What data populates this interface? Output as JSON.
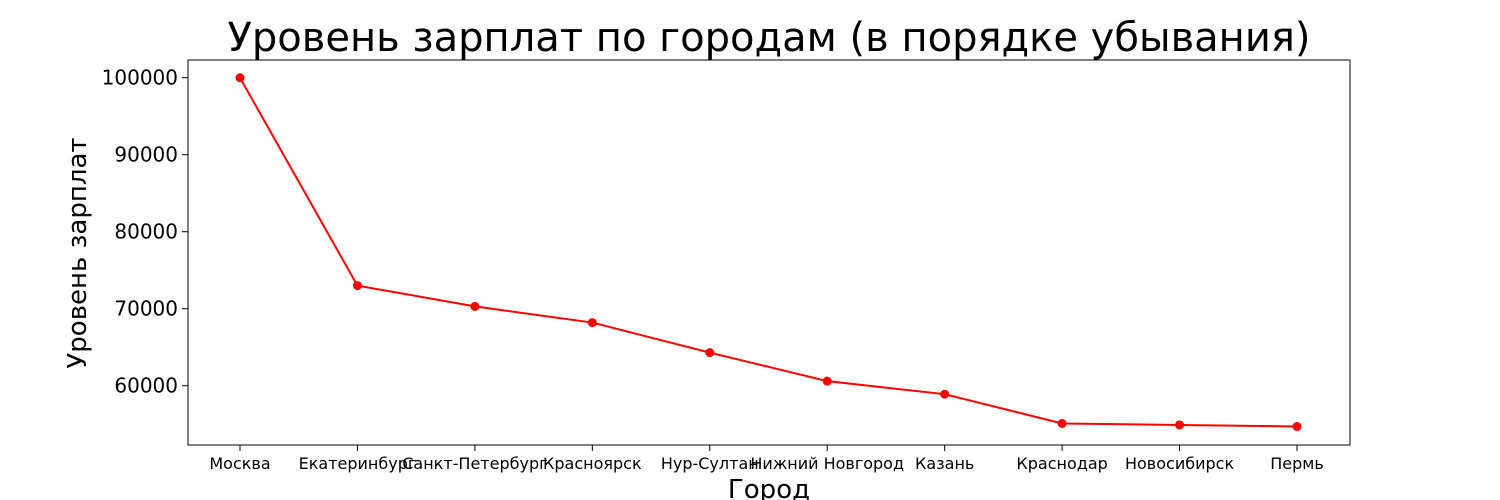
{
  "chart_data": {
    "type": "line",
    "title": "Уровень зарплат по городам (в порядке убывания)",
    "xlabel": "Город",
    "ylabel": "Уровень зарплат",
    "categories": [
      "Москва",
      "Екатеринбург",
      "Санкт-Петербург",
      "Красноярск",
      "Нур-Султан",
      "Нижний Новгород",
      "Казань",
      "Краснодар",
      "Новосибирск",
      "Пермь"
    ],
    "series": [
      {
        "values": [
          100000,
          73000,
          70300,
          68200,
          64300,
          60600,
          58900,
          55100,
          54900,
          54700
        ]
      }
    ],
    "yticks": [
      "60000",
      "70000",
      "80000",
      "90000",
      "100000"
    ],
    "ylim": [
      52300,
      102300
    ],
    "grid": false,
    "line_color": "#ff0000",
    "marker": "circle"
  }
}
